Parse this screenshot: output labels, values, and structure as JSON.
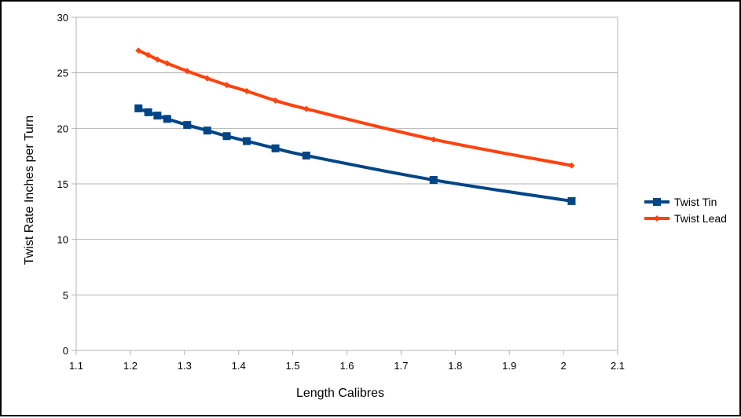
{
  "chart_data": {
    "type": "line",
    "title": "",
    "xlabel": "Length Calibres",
    "ylabel": "Twist Rate Inches per Turn",
    "xlim": [
      1.1,
      2.1
    ],
    "ylim": [
      0,
      30
    ],
    "xticks": [
      1.1,
      1.2,
      1.3,
      1.4,
      1.5,
      1.6,
      1.7,
      1.8,
      1.9,
      2,
      2.1
    ],
    "xtick_labels": [
      "1.1",
      "1.2",
      "1.3",
      "1.4",
      "1.5",
      "1.6",
      "1.7",
      "1.8",
      "1.9",
      "2",
      "2.1"
    ],
    "yticks": [
      0,
      5,
      10,
      15,
      20,
      25,
      30
    ],
    "ytick_labels": [
      "0",
      "5",
      "10",
      "15",
      "20",
      "25",
      "30"
    ],
    "grid": "horizontal",
    "legend_position": "right",
    "series": [
      {
        "name": "Twist Tin",
        "color": "#004586",
        "marker": "square",
        "x": [
          1.215,
          1.233,
          1.25,
          1.268,
          1.305,
          1.342,
          1.378,
          1.415,
          1.468,
          1.525,
          1.76,
          2.015
        ],
        "y": [
          21.8,
          21.45,
          21.15,
          20.85,
          20.3,
          19.8,
          19.3,
          18.85,
          18.2,
          17.55,
          15.35,
          13.45
        ]
      },
      {
        "name": "Twist Lead",
        "color": "#ff420e",
        "marker": "diamond",
        "x": [
          1.215,
          1.233,
          1.25,
          1.268,
          1.305,
          1.342,
          1.378,
          1.415,
          1.468,
          1.525,
          1.76,
          2.015
        ],
        "y": [
          27.0,
          26.6,
          26.2,
          25.85,
          25.15,
          24.5,
          23.9,
          23.35,
          22.5,
          21.75,
          19.0,
          16.65
        ]
      }
    ]
  }
}
